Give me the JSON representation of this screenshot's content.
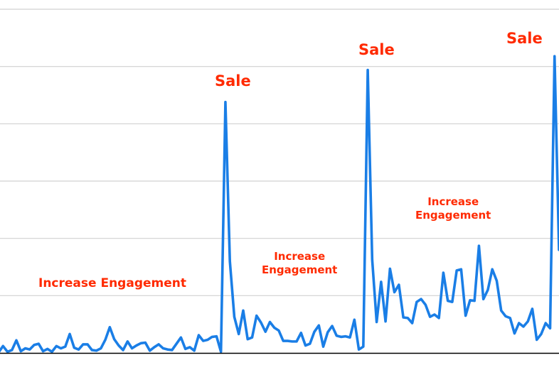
{
  "chart_data": {
    "type": "line",
    "title": "",
    "xlabel": "",
    "ylabel": "",
    "ylim": [
      0,
      6
    ],
    "grid": true,
    "legend": "none",
    "colors": {
      "line": "#1a7ee6",
      "grid": "#d0d0d0",
      "baseline": "#000000",
      "annotation": "#ff2a00"
    },
    "series": [
      {
        "values": [
          0.01,
          0.12,
          0.02,
          0.05,
          0.22,
          0.03,
          0.08,
          0.06,
          0.14,
          0.16,
          0.03,
          0.07,
          0.02,
          0.12,
          0.08,
          0.11,
          0.33,
          0.09,
          0.06,
          0.15,
          0.15,
          0.05,
          0.04,
          0.08,
          0.23,
          0.45,
          0.24,
          0.13,
          0.05,
          0.2,
          0.08,
          0.13,
          0.17,
          0.18,
          0.04,
          0.1,
          0.15,
          0.08,
          0.06,
          0.05,
          0.16,
          0.27,
          0.07,
          0.1,
          0.04,
          0.31,
          0.21,
          0.23,
          0.28,
          0.29,
          0.02,
          4.38,
          1.6,
          0.63,
          0.33,
          0.74,
          0.24,
          0.27,
          0.65,
          0.53,
          0.37,
          0.54,
          0.44,
          0.39,
          0.21,
          0.21,
          0.2,
          0.2,
          0.35,
          0.13,
          0.16,
          0.37,
          0.48,
          0.11,
          0.36,
          0.47,
          0.3,
          0.28,
          0.29,
          0.27,
          0.58,
          0.06,
          0.11,
          4.94,
          1.63,
          0.54,
          1.24,
          0.55,
          1.47,
          1.06,
          1.19,
          0.62,
          0.61,
          0.52,
          0.89,
          0.94,
          0.84,
          0.63,
          0.67,
          0.61,
          1.4,
          0.91,
          0.89,
          1.44,
          1.46,
          0.65,
          0.92,
          0.91,
          1.87,
          0.94,
          1.1,
          1.46,
          1.26,
          0.74,
          0.64,
          0.61,
          0.34,
          0.52,
          0.46,
          0.55,
          0.77,
          0.23,
          0.33,
          0.52,
          0.43,
          5.18,
          1.8
        ]
      }
    ],
    "annotations": [
      {
        "text": "Sale",
        "style": "sale"
      },
      {
        "text": "Sale",
        "style": "sale"
      },
      {
        "text": "Sale",
        "style": "sale"
      },
      {
        "text": "Increase Engagement",
        "style": "big"
      },
      {
        "text": "Increase\nEngagement",
        "style": "small"
      },
      {
        "text": "Increase\nEngagement",
        "style": "small"
      }
    ]
  }
}
